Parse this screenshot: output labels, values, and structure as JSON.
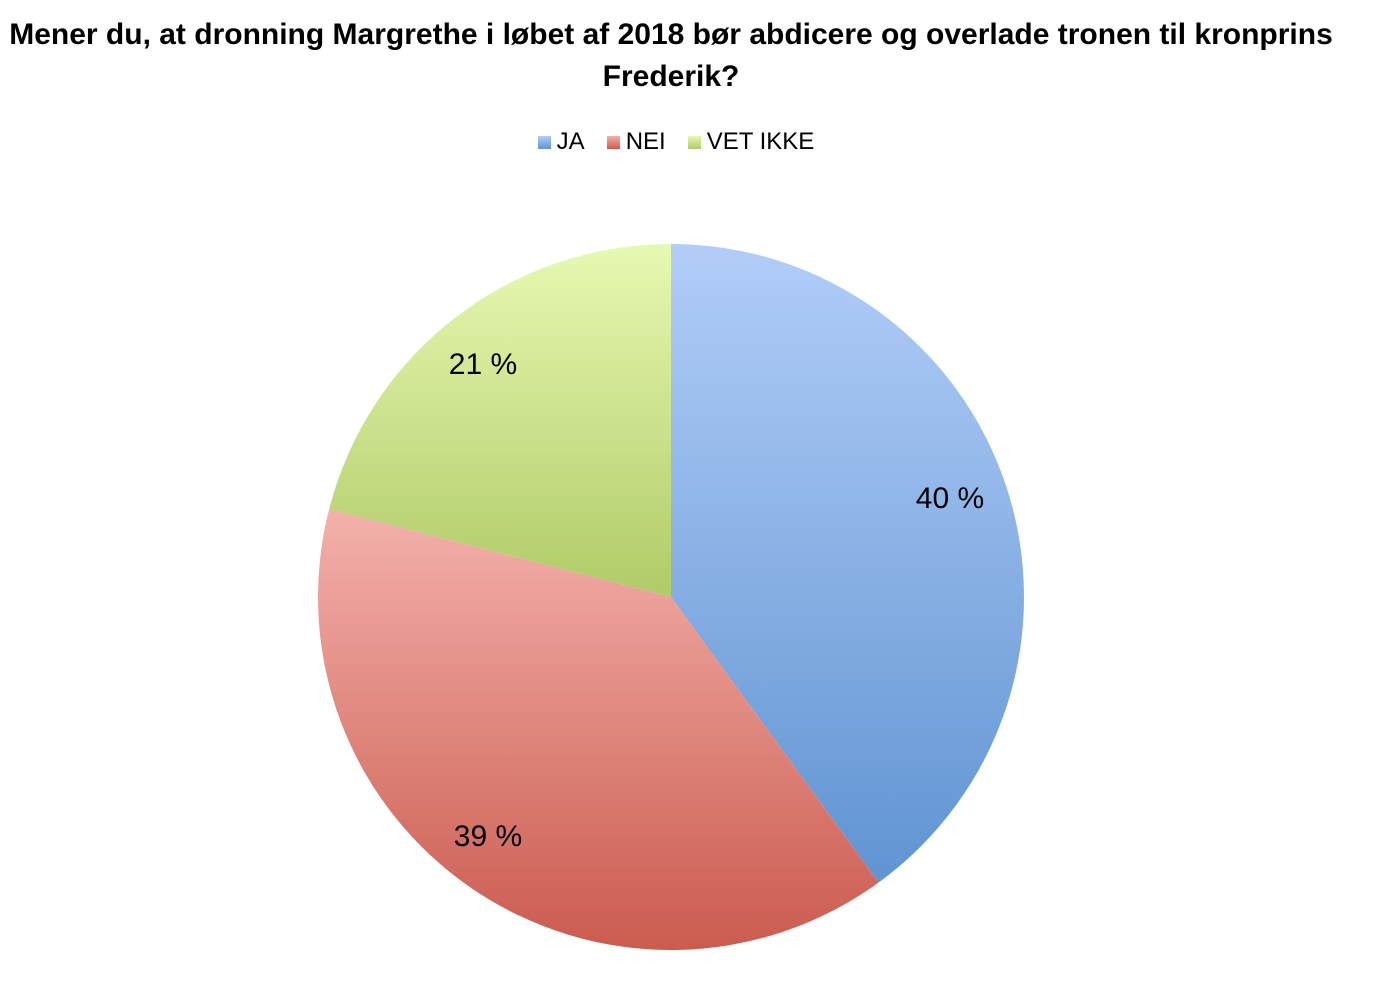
{
  "chart_data": {
    "type": "pie",
    "title": "Mener du, at dronning Margrethe i løbet af 2018 bør abdicere og overlade tronen til kronprins Frederik?",
    "legend_position": "top",
    "slices": [
      {
        "name": "JA",
        "value": 40,
        "label": "40 %",
        "color": "#7ea7e0",
        "light": "#b2cdf8",
        "dark": "#6094d2"
      },
      {
        "name": "NEI",
        "value": 39,
        "label": "39 %",
        "color": "#de7e73",
        "light": "#f3b1ab",
        "dark": "#cb5b4f"
      },
      {
        "name": "VET IKKE",
        "value": 21,
        "label": "21 %",
        "color": "#cbe08a",
        "light": "#e8f8b2",
        "dark": "#b0cb68"
      }
    ]
  }
}
